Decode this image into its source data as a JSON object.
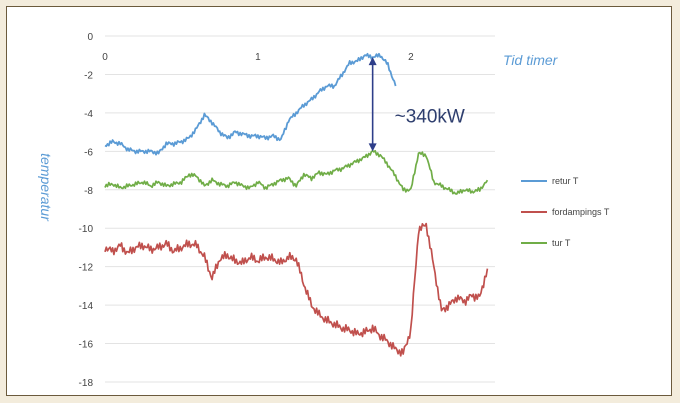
{
  "chart_data": {
    "type": "line",
    "title": "",
    "xlabel": "Tid timer",
    "ylabel": "temperatur",
    "xlim": [
      0,
      2.55
    ],
    "ylim": [
      -18,
      0
    ],
    "x_ticks": [
      "0",
      "1",
      "2"
    ],
    "x_tick_values": [
      0,
      1,
      2
    ],
    "y_ticks": [
      "0",
      "-2",
      "-4",
      "-6",
      "-8",
      "-10",
      "-12",
      "-14",
      "-16",
      "-18"
    ],
    "y_tick_values": [
      0,
      -2,
      -4,
      -6,
      -8,
      -10,
      -12,
      -14,
      -16,
      -18
    ],
    "grid": "horizontal",
    "legend_position": "right",
    "annotation": {
      "text": "~340kW",
      "x": 1.75,
      "y_top": -1.1,
      "y_bottom": -6.0
    },
    "series": [
      {
        "name": "retur T",
        "color": "#5b9bd5",
        "x": [
          0,
          0.05,
          0.1,
          0.15,
          0.2,
          0.25,
          0.3,
          0.35,
          0.4,
          0.45,
          0.5,
          0.55,
          0.6,
          0.65,
          0.7,
          0.75,
          0.8,
          0.85,
          0.9,
          0.95,
          1.0,
          1.05,
          1.1,
          1.15,
          1.2,
          1.25,
          1.3,
          1.35,
          1.4,
          1.45,
          1.5,
          1.55,
          1.6,
          1.65,
          1.7,
          1.75,
          1.8,
          1.85,
          1.9
        ],
        "y": [
          -5.7,
          -5.5,
          -5.6,
          -5.9,
          -6.0,
          -6.0,
          -6.0,
          -6.1,
          -5.6,
          -5.6,
          -5.5,
          -5.3,
          -4.8,
          -4.1,
          -4.5,
          -5.0,
          -5.3,
          -5.0,
          -5.1,
          -5.2,
          -5.2,
          -5.3,
          -5.2,
          -5.4,
          -4.4,
          -4.0,
          -3.6,
          -3.3,
          -2.9,
          -2.6,
          -2.6,
          -2.0,
          -1.4,
          -1.3,
          -1.0,
          -1.1,
          -1.0,
          -1.5,
          -2.6
        ]
      },
      {
        "name": "fordampings T",
        "color": "#c0504d",
        "x": [
          0,
          0.05,
          0.1,
          0.15,
          0.2,
          0.25,
          0.3,
          0.35,
          0.4,
          0.45,
          0.5,
          0.55,
          0.6,
          0.65,
          0.7,
          0.75,
          0.8,
          0.85,
          0.9,
          0.95,
          1.0,
          1.05,
          1.1,
          1.15,
          1.2,
          1.25,
          1.3,
          1.35,
          1.4,
          1.45,
          1.5,
          1.55,
          1.6,
          1.65,
          1.7,
          1.75,
          1.8,
          1.85,
          1.9,
          1.95,
          2.0,
          2.05,
          2.1,
          2.15,
          2.2,
          2.25,
          2.3,
          2.35,
          2.4,
          2.45,
          2.5
        ],
        "y": [
          -11.0,
          -11.2,
          -10.9,
          -11.3,
          -11.0,
          -10.9,
          -11.1,
          -11.0,
          -10.8,
          -11.2,
          -11.0,
          -10.8,
          -10.9,
          -11.5,
          -12.6,
          -11.6,
          -11.4,
          -11.7,
          -11.8,
          -11.5,
          -11.7,
          -11.5,
          -11.6,
          -11.8,
          -11.5,
          -11.6,
          -12.9,
          -14.0,
          -14.5,
          -14.8,
          -15.0,
          -15.2,
          -15.3,
          -15.5,
          -15.4,
          -15.2,
          -15.6,
          -15.9,
          -16.3,
          -16.5,
          -15.3,
          -10.1,
          -9.8,
          -12.0,
          -14.3,
          -14.0,
          -13.6,
          -13.8,
          -13.5,
          -13.6,
          -12.1
        ]
      },
      {
        "name": "tur T",
        "color": "#70ad47",
        "x": [
          0,
          0.05,
          0.1,
          0.15,
          0.2,
          0.25,
          0.3,
          0.35,
          0.4,
          0.45,
          0.5,
          0.55,
          0.6,
          0.65,
          0.7,
          0.75,
          0.8,
          0.85,
          0.9,
          0.95,
          1.0,
          1.05,
          1.1,
          1.15,
          1.2,
          1.25,
          1.3,
          1.35,
          1.4,
          1.45,
          1.5,
          1.55,
          1.6,
          1.65,
          1.7,
          1.75,
          1.8,
          1.85,
          1.9,
          1.95,
          2.0,
          2.05,
          2.1,
          2.15,
          2.2,
          2.25,
          2.3,
          2.35,
          2.4,
          2.45,
          2.5
        ],
        "y": [
          -7.8,
          -7.7,
          -7.9,
          -7.8,
          -7.7,
          -7.6,
          -7.8,
          -7.6,
          -7.8,
          -7.7,
          -7.6,
          -7.2,
          -7.3,
          -7.8,
          -7.5,
          -7.7,
          -7.8,
          -7.6,
          -7.8,
          -7.9,
          -7.6,
          -7.9,
          -7.7,
          -7.5,
          -7.4,
          -7.8,
          -7.2,
          -7.4,
          -7.1,
          -7.2,
          -7.0,
          -6.9,
          -6.7,
          -6.5,
          -6.3,
          -6.0,
          -6.2,
          -6.7,
          -7.3,
          -8.0,
          -8.0,
          -6.1,
          -6.2,
          -7.6,
          -7.8,
          -8.0,
          -8.2,
          -8.0,
          -8.1,
          -8.0,
          -7.5
        ]
      }
    ]
  }
}
